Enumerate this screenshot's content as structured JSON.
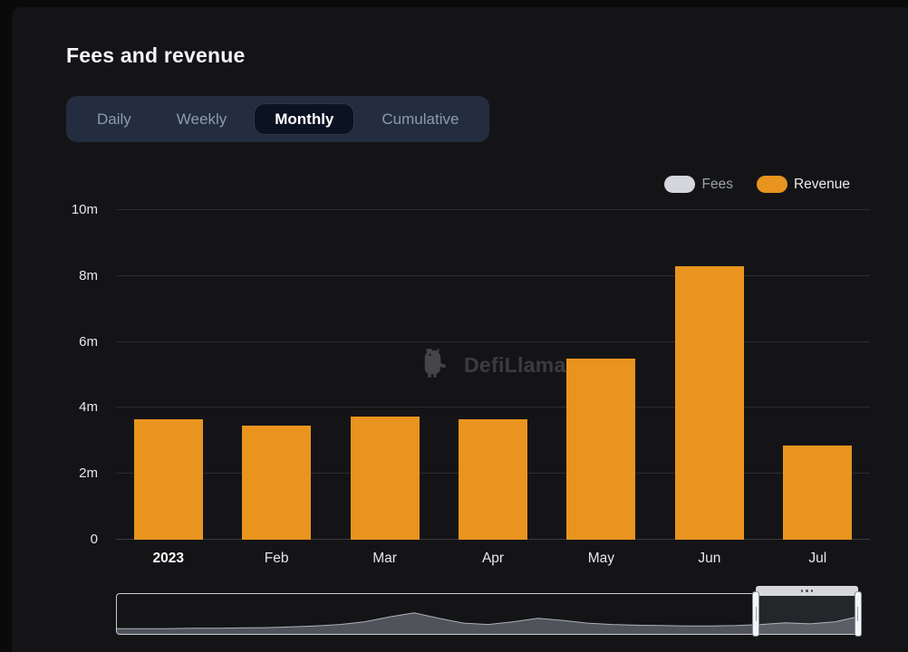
{
  "page": {
    "title": "Fees and revenue"
  },
  "tabs": {
    "items": [
      {
        "label": "Daily",
        "active": false
      },
      {
        "label": "Weekly",
        "active": false
      },
      {
        "label": "Monthly",
        "active": true
      },
      {
        "label": "Cumulative",
        "active": false
      }
    ]
  },
  "legend": {
    "items": [
      {
        "label": "Fees",
        "color": "#d3d6dc",
        "label_color": "#9aa1ac"
      },
      {
        "label": "Revenue",
        "color": "#e8941f",
        "label_color": "#e9eaec"
      }
    ]
  },
  "watermark": {
    "text": "DefiLlama"
  },
  "chart_data": {
    "type": "bar",
    "title": "Fees and revenue (Monthly)",
    "categories": [
      "2023",
      "Feb",
      "Mar",
      "Apr",
      "May",
      "Jun",
      "Jul"
    ],
    "x_emphasized": [
      "2023"
    ],
    "series": [
      {
        "name": "Revenue",
        "color": "#e8941f",
        "values": [
          3650000,
          3450000,
          3750000,
          3650000,
          5500000,
          8300000,
          2850000
        ]
      }
    ],
    "ylim": [
      0,
      10000000
    ],
    "yticks": [
      {
        "label": "0",
        "value": 0
      },
      {
        "label": "2m",
        "value": 2000000
      },
      {
        "label": "4m",
        "value": 4000000
      },
      {
        "label": "6m",
        "value": 6000000
      },
      {
        "label": "8m",
        "value": 8000000
      },
      {
        "label": "10m",
        "value": 10000000
      }
    ],
    "grid": true,
    "legend_position": "top-right"
  },
  "brush": {
    "sparkline": [
      0.1,
      0.1,
      0.1,
      0.11,
      0.11,
      0.12,
      0.13,
      0.15,
      0.18,
      0.22,
      0.3,
      0.44,
      0.56,
      0.4,
      0.26,
      0.22,
      0.3,
      0.4,
      0.34,
      0.26,
      0.22,
      0.2,
      0.19,
      0.18,
      0.18,
      0.19,
      0.22,
      0.27,
      0.24,
      0.3,
      0.46
    ],
    "selection": {
      "start": 0.86,
      "end": 0.997
    }
  }
}
